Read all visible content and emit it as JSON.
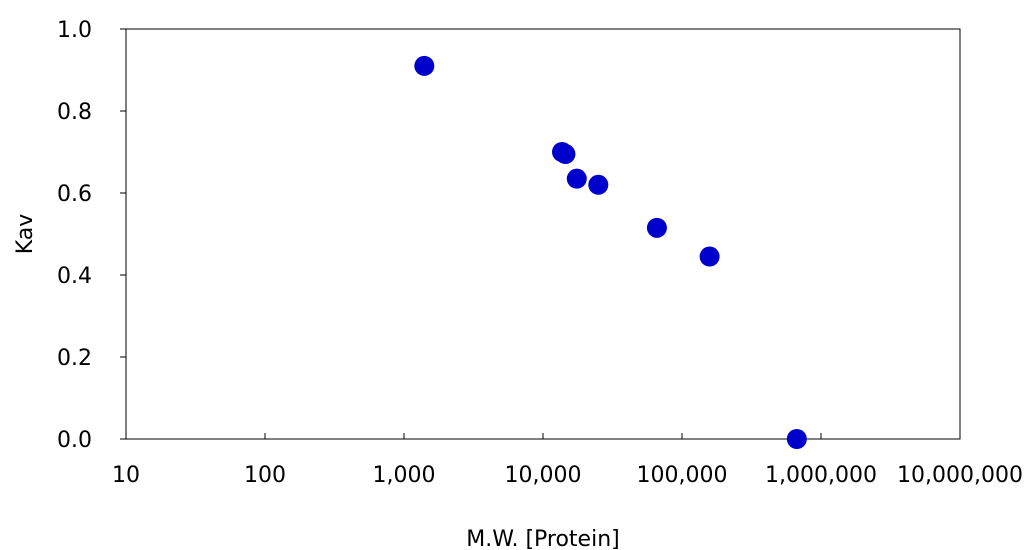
{
  "chart_data": {
    "type": "scatter",
    "title": "",
    "xlabel": "M.W. [Protein]",
    "ylabel": "Kav",
    "x_scale": "log",
    "xlim": [
      10,
      10000000
    ],
    "ylim": [
      0.0,
      1.0
    ],
    "x_ticks": [
      10,
      100,
      1000,
      10000,
      100000,
      1000000,
      10000000
    ],
    "x_tick_labels": [
      "10",
      "100",
      "1,000",
      "10,000",
      "100,000",
      "1,000,000",
      "10,000,000"
    ],
    "y_ticks": [
      0.0,
      0.2,
      0.4,
      0.6,
      0.8,
      1.0
    ],
    "y_tick_labels": [
      "0.0",
      "0.2",
      "0.4",
      "0.6",
      "0.8",
      "1.0"
    ],
    "grid": false,
    "legend": "none",
    "marker_color": "#0000cc",
    "series": [
      {
        "points": [
          {
            "x": 1400,
            "y": 0.91
          },
          {
            "x": 13700,
            "y": 0.7
          },
          {
            "x": 14500,
            "y": 0.695
          },
          {
            "x": 17500,
            "y": 0.635
          },
          {
            "x": 25000,
            "y": 0.62
          },
          {
            "x": 66000,
            "y": 0.515
          },
          {
            "x": 158000,
            "y": 0.445
          },
          {
            "x": 670000,
            "y": 0.0
          }
        ]
      }
    ]
  }
}
